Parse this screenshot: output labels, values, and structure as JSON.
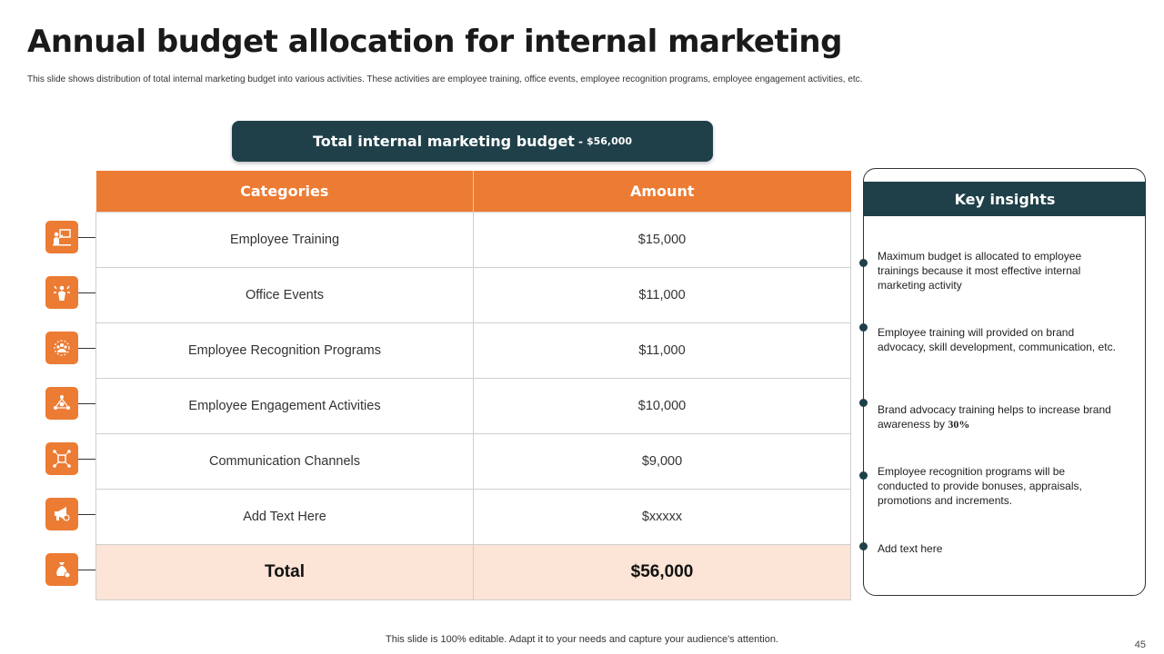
{
  "slide": {
    "title": "Annual budget allocation for internal marketing",
    "subtitle": "This slide shows distribution of total internal marketing budget into various activities. These activities are employee training, office events, employee recognition programs, employee engagement activities, etc.",
    "banner": {
      "label": "Total internal marketing budget",
      "separator": "-",
      "value": "$56,000"
    },
    "table": {
      "headers": [
        "Categories",
        "Amount"
      ],
      "rows": [
        {
          "category": "Employee Training",
          "amount": "$15,000",
          "icon": "presentation-icon"
        },
        {
          "category": "Office Events",
          "amount": "$11,000",
          "icon": "celebration-icon"
        },
        {
          "category": "Employee Recognition Programs",
          "amount": "$11,000",
          "icon": "team-award-icon"
        },
        {
          "category": "Employee Engagement Activities",
          "amount": "$10,000",
          "icon": "network-people-icon"
        },
        {
          "category": "Communication Channels",
          "amount": "$9,000",
          "icon": "network-hub-icon"
        },
        {
          "category": "Add Text Here",
          "amount": "$xxxxx",
          "icon": "megaphone-icon"
        }
      ],
      "total": {
        "label": "Total",
        "amount": "$56,000",
        "icon": "money-bag-icon"
      }
    },
    "insights": {
      "title": "Key insights",
      "items": [
        "Maximum budget is allocated to employee trainings because it most effective  internal marketing activity",
        "Employee training will provided  on brand advocacy, skill development, communication, etc.",
        "Add text here",
        "Employee recognition programs will be conducted to provide  bonuses, appraisals, promotions and increments.",
        "Add text here"
      ],
      "brand_item": {
        "text": "Brand advocacy training helps to increase brand awareness by ",
        "highlight": "30%"
      }
    },
    "footer": "This slide is 100% editable. Adapt it to your needs and capture your audience's attention.",
    "page_number": "45",
    "colors": {
      "accent": "#ec7b33",
      "dark": "#1f4049",
      "total_bg": "#fce4d6"
    }
  }
}
